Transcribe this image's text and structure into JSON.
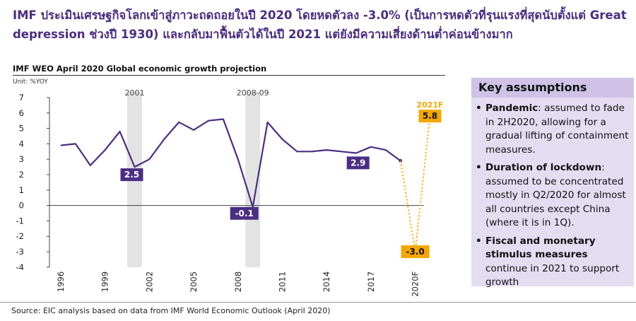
{
  "headline": "IMF ประเมินเศรษฐกิจโลกเข้าสู่ภาวะถดถอยในปี 2020 โดยหดตัวลง -3.0% (เป็นการหดตัวที่รุนแรงที่สุดนับตั้งแต่ Great depression ช่วงปี 1930) และกลับมาฟื้นตัวได้ในปี 2021 แต่ยังมีความเสี่ยงด้านต่ำค่อนข้างมาก",
  "chart_title": "IMF WEO April 2020 Global economic growth projection",
  "unit": "Unit: %YOY",
  "source": "Source: EIC analysis based on data from IMF World Economic Outlook (April 2020)",
  "colors": {
    "line": "#4b2e83",
    "forecast": "#f5a700",
    "shade": "#e3e3e3",
    "panel": "#e4dcf0",
    "panel_header": "#cfc2e6"
  },
  "key_assumptions": {
    "title": "Key assumptions",
    "bullet": "•",
    "items": [
      {
        "head": "Pandemic",
        "text": ": assumed to fade in 2H2020, allowing for a gradual lifting of containment measures."
      },
      {
        "head": "Duration of lockdown",
        "text": ": assumed to be concentrated mostly in Q2/2020 for almost all countries except China (where it is in 1Q)."
      },
      {
        "head": "Fiscal and monetary stimulus measures",
        "text": " continue in 2021 to support growth"
      }
    ]
  },
  "chart_data": {
    "type": "line",
    "title": "IMF WEO April 2020 Global economic growth projection",
    "ylabel": "Unit: %YOY",
    "ylim": [
      -4,
      7
    ],
    "y_ticks": [
      7,
      6,
      5,
      4,
      3,
      2,
      1,
      0,
      -1,
      -2,
      -3,
      -4
    ],
    "x_ticks": [
      "1996",
      "1999",
      "2002",
      "2005",
      "2008",
      "2011",
      "2014",
      "2017",
      "2020F"
    ],
    "grid": false,
    "x": [
      1996,
      1997,
      1998,
      1999,
      2000,
      2001,
      2002,
      2003,
      2004,
      2005,
      2006,
      2007,
      2008,
      2009,
      2010,
      2011,
      2012,
      2013,
      2014,
      2015,
      2016,
      2017,
      2018,
      2019
    ],
    "series": [
      {
        "values": [
          3.9,
          4.0,
          2.6,
          3.6,
          4.8,
          2.5,
          3.0,
          4.3,
          5.4,
          4.9,
          5.5,
          5.6,
          3.0,
          -0.1,
          5.4,
          4.3,
          3.5,
          3.5,
          3.6,
          3.5,
          3.4,
          3.8,
          3.6,
          2.9
        ]
      }
    ],
    "forecast": [
      {
        "x": "2020F",
        "value": -3.0,
        "label": "-3.0"
      },
      {
        "x": "2021F",
        "value": 5.8,
        "label": "5.8"
      }
    ],
    "shaded_periods": [
      {
        "label": "2001",
        "from": 2000.5,
        "to": 2001.5
      },
      {
        "label": "2008-09",
        "from": 2008.5,
        "to": 2009.5
      }
    ],
    "annotations": [
      {
        "x": 2001,
        "value": 2.5,
        "text": "2.5"
      },
      {
        "x": 2009,
        "value": -0.1,
        "text": "-0.1"
      },
      {
        "x": 2019,
        "value": 2.9,
        "text": "2.9"
      },
      {
        "x": "2021F",
        "text": "2021F"
      }
    ]
  }
}
